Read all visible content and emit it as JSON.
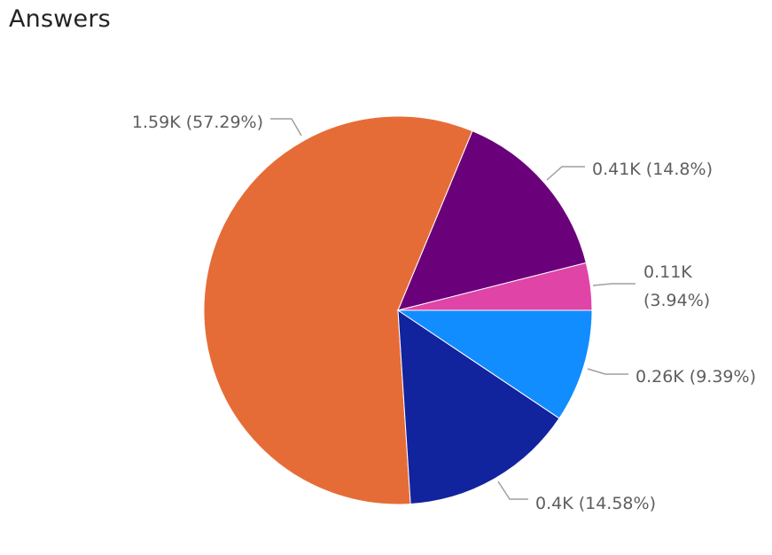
{
  "title": "Answers",
  "chart_data": {
    "type": "pie",
    "title": "Answers",
    "legend": "none",
    "start_angle_deg": 0,
    "direction": "counterclockwise",
    "slices": [
      {
        "value": 0.11,
        "percent": 3.94,
        "value_label": "0.11K",
        "percent_label": "(3.94%)",
        "color": "#E044A7",
        "label_lines": [
          "0.11K",
          "(3.94%)"
        ]
      },
      {
        "value": 0.41,
        "percent": 14.8,
        "value_label": "0.41K",
        "percent_label": "(14.8%)",
        "color": "#6B007B",
        "label_lines": [
          "0.41K (14.8%)"
        ]
      },
      {
        "value": 1.59,
        "percent": 57.29,
        "value_label": "1.59K",
        "percent_label": "(57.29%)",
        "color": "#E66C37",
        "label_lines": [
          "1.59K (57.29%)"
        ]
      },
      {
        "value": 0.4,
        "percent": 14.58,
        "value_label": "0.4K",
        "percent_label": "(14.58%)",
        "color": "#12239E",
        "label_lines": [
          "0.4K (14.58%)"
        ]
      },
      {
        "value": 0.26,
        "percent": 9.39,
        "value_label": "0.26K",
        "percent_label": "(9.39%)",
        "color": "#118DFF",
        "label_lines": [
          "0.26K (9.39%)"
        ]
      }
    ]
  }
}
